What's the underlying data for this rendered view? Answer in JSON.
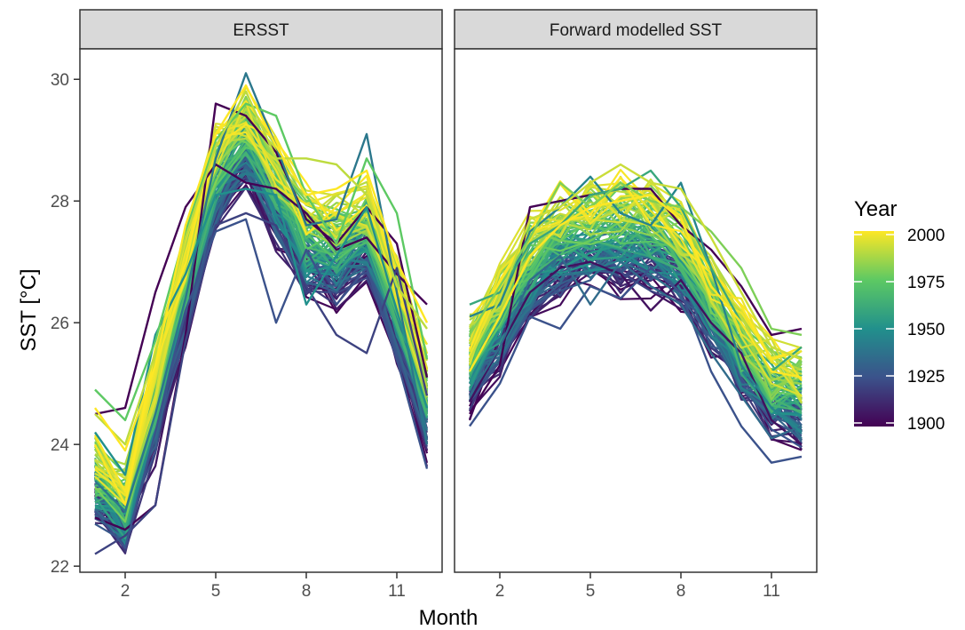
{
  "chart_data": {
    "type": "line",
    "xlabel": "Month",
    "ylabel": "SST [°C]",
    "x": [
      1,
      2,
      3,
      4,
      5,
      6,
      7,
      8,
      9,
      10,
      11,
      12
    ],
    "xticks": [
      2,
      5,
      8,
      11
    ],
    "xlim": [
      0.5,
      12.5
    ],
    "yticks": [
      22,
      24,
      26,
      28,
      30
    ],
    "ylim": [
      21.9,
      30.5
    ],
    "grid": false,
    "color_scale": {
      "title": "Year",
      "range": [
        1900,
        2000
      ],
      "ticks": [
        1900,
        1925,
        1950,
        1975,
        2000
      ],
      "stops": [
        "#440154",
        "#3b528b",
        "#21908c",
        "#5dc963",
        "#fde725"
      ]
    },
    "legend_position": "right",
    "panels": [
      {
        "title": "ERSST",
        "base": {
          "years": [
            1900,
            1925,
            1950,
            1975,
            2000
          ],
          "values": [
            [
              23.1,
              22.6,
              24.0,
              26.0,
              27.8,
              28.4,
              27.5,
              26.7,
              26.5,
              26.8,
              25.5,
              24.0
            ],
            [
              23.0,
              22.7,
              24.3,
              26.2,
              28.0,
              28.7,
              27.8,
              26.9,
              26.8,
              27.2,
              25.9,
              24.4
            ],
            [
              23.3,
              22.8,
              24.6,
              26.5,
              28.3,
              29.0,
              28.1,
              27.2,
              27.1,
              27.5,
              26.2,
              24.7
            ],
            [
              23.6,
              23.1,
              24.9,
              26.9,
              28.7,
              29.3,
              28.4,
              27.6,
              27.5,
              27.8,
              26.5,
              25.0
            ],
            [
              23.9,
              23.4,
              25.2,
              27.2,
              28.9,
              29.5,
              28.7,
              27.9,
              27.8,
              28.0,
              26.8,
              25.3
            ]
          ]
        },
        "highlights": [
          {
            "year": 1900,
            "values": [
              24.5,
              24.6,
              26.5,
              27.9,
              28.6,
              28.3,
              28.2,
              27.8,
              27.2,
              27.4,
              26.8,
              26.3
            ]
          },
          {
            "year": 1900,
            "values": [
              22.8,
              22.6,
              23.0,
              25.8,
              29.6,
              29.4,
              28.8,
              27.7,
              27.3,
              27.9,
              27.3,
              25.1
            ]
          },
          {
            "year": 1920,
            "values": [
              22.2,
              22.5,
              23.0,
              25.7,
              27.6,
              27.8,
              27.6,
              26.6,
              25.8,
              25.5,
              26.9,
              24.8
            ]
          },
          {
            "year": 1925,
            "values": [
              22.9,
              22.3,
              24.2,
              26.2,
              27.5,
              27.7,
              26.0,
              27.2,
              26.3,
              26.9,
              25.4,
              23.6
            ]
          },
          {
            "year": 1940,
            "values": [
              23.4,
              22.9,
              24.5,
              26.4,
              28.7,
              30.1,
              28.9,
              27.6,
              27.7,
              29.1,
              26.5,
              24.0
            ]
          },
          {
            "year": 1950,
            "values": [
              24.2,
              23.5,
              25.8,
              26.8,
              28.1,
              28.2,
              28.1,
              26.3,
              27.1,
              27.9,
              26.2,
              24.6
            ]
          },
          {
            "year": 1975,
            "values": [
              24.9,
              24.4,
              25.7,
              27.5,
              29.0,
              29.6,
              29.4,
              28.1,
              27.3,
              28.7,
              27.8,
              25.4
            ]
          },
          {
            "year": 1990,
            "values": [
              24.5,
              24.0,
              25.5,
              27.4,
              28.9,
              29.8,
              28.7,
              28.7,
              28.6,
              28.1,
              26.6,
              25.9
            ]
          },
          {
            "year": 2000,
            "values": [
              24.6,
              23.9,
              25.3,
              27.6,
              29.1,
              29.9,
              28.9,
              28.1,
              28.2,
              28.5,
              27.0,
              26.0
            ]
          }
        ]
      },
      {
        "title": "Forward modelled SST",
        "base": {
          "years": [
            1900,
            1925,
            1950,
            1975,
            2000
          ],
          "values": [
            [
              24.8,
              25.5,
              26.4,
              26.7,
              26.9,
              26.8,
              26.8,
              26.6,
              25.8,
              25.1,
              24.5,
              24.3
            ],
            [
              25.0,
              25.7,
              26.5,
              26.9,
              27.0,
              27.0,
              27.0,
              26.8,
              26.0,
              25.2,
              24.6,
              24.4
            ],
            [
              25.3,
              26.0,
              26.8,
              27.2,
              27.3,
              27.3,
              27.3,
              27.0,
              26.2,
              25.4,
              24.8,
              24.7
            ],
            [
              25.6,
              26.4,
              27.2,
              27.6,
              27.7,
              27.8,
              27.8,
              27.4,
              26.5,
              25.7,
              25.1,
              25.0
            ],
            [
              25.8,
              26.7,
              27.5,
              27.9,
              28.0,
              28.1,
              28.0,
              27.6,
              26.8,
              26.0,
              25.4,
              25.2
            ]
          ]
        },
        "highlights": [
          {
            "year": 1900,
            "values": [
              24.5,
              25.3,
              27.9,
              28.0,
              28.1,
              28.2,
              28.2,
              27.6,
              27.2,
              26.6,
              25.8,
              25.9
            ]
          },
          {
            "year": 1905,
            "values": [
              24.7,
              25.6,
              26.5,
              26.9,
              27.0,
              26.8,
              26.2,
              26.7,
              26.0,
              25.5,
              24.4,
              24.0
            ]
          },
          {
            "year": 1925,
            "values": [
              24.3,
              25.0,
              26.1,
              25.9,
              26.6,
              26.4,
              26.9,
              26.5,
              25.2,
              24.3,
              23.7,
              23.8
            ]
          },
          {
            "year": 1935,
            "values": [
              24.8,
              25.6,
              26.7,
              27.1,
              26.3,
              27.0,
              26.6,
              26.3,
              25.5,
              24.8,
              24.1,
              24.3
            ]
          },
          {
            "year": 1945,
            "values": [
              26.1,
              26.3,
              27.5,
              27.9,
              28.4,
              27.8,
              27.6,
              28.3,
              26.9,
              25.3,
              24.6,
              24.2
            ]
          },
          {
            "year": 1960,
            "values": [
              26.3,
              26.5,
              27.3,
              27.6,
              28.1,
              28.2,
              28.5,
              27.9,
              26.9,
              26.0,
              25.2,
              25.6
            ]
          },
          {
            "year": 1980,
            "values": [
              25.8,
              26.6,
              27.4,
              28.3,
              27.9,
              28.3,
              28.0,
              27.9,
              27.5,
              26.9,
              25.9,
              25.8
            ]
          },
          {
            "year": 1992,
            "values": [
              25.4,
              26.4,
              27.7,
              27.9,
              28.3,
              28.6,
              28.3,
              28.2,
              27.4,
              26.5,
              25.6,
              25.4
            ]
          },
          {
            "year": 2000,
            "values": [
              25.2,
              26.1,
              27.1,
              27.6,
              27.9,
              28.0,
              28.1,
              27.7,
              26.6,
              26.0,
              25.2,
              25.1
            ]
          }
        ]
      }
    ]
  }
}
